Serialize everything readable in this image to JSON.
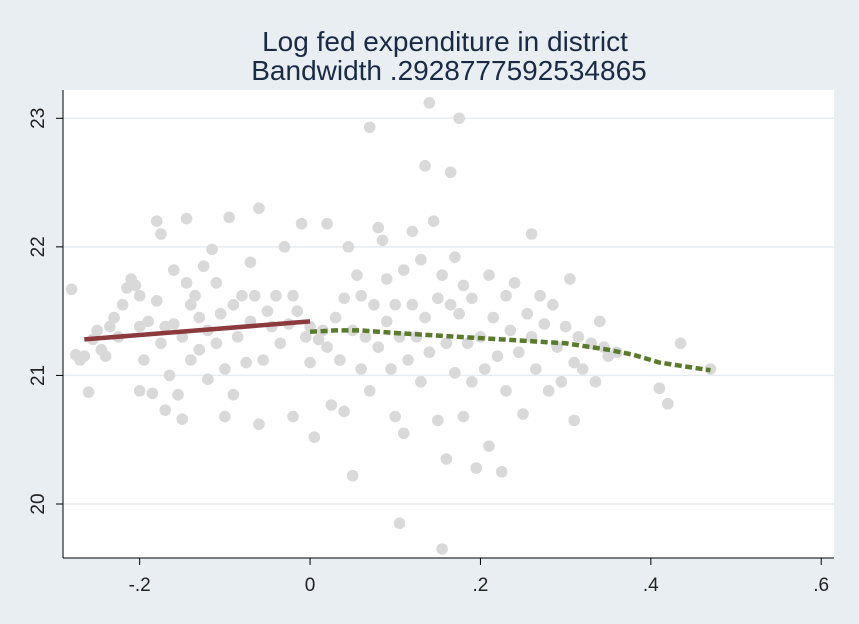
{
  "chart_data": {
    "type": "scatter",
    "title": "Log fed expenditure in district",
    "subtitle": "Bandwidth .2928777592534865",
    "xlabel": "",
    "ylabel": "",
    "xlim": [
      -0.29,
      0.615
    ],
    "ylim": [
      19.58,
      23.22
    ],
    "x_ticks": [
      -0.2,
      0,
      0.2,
      0.4,
      0.6
    ],
    "x_tick_labels": [
      "-.2",
      "0",
      ".2",
      ".4",
      ".6"
    ],
    "y_ticks": [
      20,
      21,
      22,
      23
    ],
    "y_tick_labels": [
      "20",
      "21",
      "22",
      "23"
    ],
    "grid": "horizontal",
    "legend": "none",
    "colors": {
      "background": "#e8eef2",
      "plot_area": "#ffffff",
      "grid": "#e6ecf0",
      "points": "#d9d9d9",
      "left_fit": "#8b3a3e",
      "right_fit": "#5a7a2e",
      "text": "#1a2a45"
    },
    "series": [
      {
        "type": "scatter",
        "points": [
          [
            -0.28,
            21.67
          ],
          [
            -0.275,
            21.16
          ],
          [
            -0.27,
            21.12
          ],
          [
            -0.265,
            21.15
          ],
          [
            -0.26,
            20.87
          ],
          [
            -0.255,
            21.28
          ],
          [
            -0.25,
            21.35
          ],
          [
            -0.245,
            21.2
          ],
          [
            -0.24,
            21.15
          ],
          [
            -0.235,
            21.38
          ],
          [
            -0.23,
            21.45
          ],
          [
            -0.225,
            21.3
          ],
          [
            -0.22,
            21.55
          ],
          [
            -0.215,
            21.68
          ],
          [
            -0.21,
            21.75
          ],
          [
            -0.205,
            21.7
          ],
          [
            -0.2,
            21.62
          ],
          [
            -0.2,
            21.38
          ],
          [
            -0.2,
            20.88
          ],
          [
            -0.195,
            21.12
          ],
          [
            -0.19,
            21.42
          ],
          [
            -0.185,
            20.86
          ],
          [
            -0.18,
            21.58
          ],
          [
            -0.18,
            22.2
          ],
          [
            -0.175,
            22.1
          ],
          [
            -0.175,
            21.25
          ],
          [
            -0.17,
            21.38
          ],
          [
            -0.17,
            20.73
          ],
          [
            -0.165,
            21.0
          ],
          [
            -0.16,
            21.4
          ],
          [
            -0.16,
            21.82
          ],
          [
            -0.155,
            20.85
          ],
          [
            -0.15,
            21.3
          ],
          [
            -0.15,
            20.66
          ],
          [
            -0.145,
            22.22
          ],
          [
            -0.145,
            21.72
          ],
          [
            -0.14,
            21.55
          ],
          [
            -0.14,
            21.12
          ],
          [
            -0.135,
            21.62
          ],
          [
            -0.13,
            21.45
          ],
          [
            -0.13,
            21.2
          ],
          [
            -0.125,
            21.85
          ],
          [
            -0.12,
            21.35
          ],
          [
            -0.12,
            20.97
          ],
          [
            -0.115,
            21.98
          ],
          [
            -0.11,
            21.72
          ],
          [
            -0.11,
            21.25
          ],
          [
            -0.105,
            21.48
          ],
          [
            -0.1,
            20.68
          ],
          [
            -0.1,
            21.05
          ],
          [
            -0.095,
            22.23
          ],
          [
            -0.09,
            21.55
          ],
          [
            -0.09,
            20.85
          ],
          [
            -0.085,
            21.3
          ],
          [
            -0.08,
            21.62
          ],
          [
            -0.075,
            21.1
          ],
          [
            -0.07,
            21.88
          ],
          [
            -0.07,
            21.42
          ],
          [
            -0.065,
            21.62
          ],
          [
            -0.06,
            22.3
          ],
          [
            -0.06,
            20.62
          ],
          [
            -0.055,
            21.12
          ],
          [
            -0.05,
            21.5
          ],
          [
            -0.045,
            21.38
          ],
          [
            -0.04,
            21.62
          ],
          [
            -0.035,
            21.25
          ],
          [
            -0.03,
            22.0
          ],
          [
            -0.025,
            21.4
          ],
          [
            -0.02,
            21.62
          ],
          [
            -0.02,
            20.68
          ],
          [
            -0.015,
            21.5
          ],
          [
            -0.01,
            22.18
          ],
          [
            -0.005,
            21.3
          ],
          [
            0.0,
            21.38
          ],
          [
            0.0,
            21.1
          ],
          [
            0.005,
            20.52
          ],
          [
            0.01,
            21.28
          ],
          [
            0.015,
            21.35
          ],
          [
            0.02,
            21.22
          ],
          [
            0.025,
            20.77
          ],
          [
            0.02,
            22.18
          ],
          [
            0.03,
            21.45
          ],
          [
            0.035,
            21.12
          ],
          [
            0.04,
            21.6
          ],
          [
            0.04,
            20.72
          ],
          [
            0.045,
            22.0
          ],
          [
            0.05,
            21.35
          ],
          [
            0.05,
            20.22
          ],
          [
            0.055,
            21.78
          ],
          [
            0.06,
            21.62
          ],
          [
            0.06,
            21.05
          ],
          [
            0.065,
            21.3
          ],
          [
            0.07,
            22.93
          ],
          [
            0.07,
            20.88
          ],
          [
            0.075,
            21.55
          ],
          [
            0.08,
            21.22
          ],
          [
            0.08,
            22.15
          ],
          [
            0.085,
            22.05
          ],
          [
            0.09,
            21.42
          ],
          [
            0.09,
            21.75
          ],
          [
            0.095,
            21.05
          ],
          [
            0.1,
            21.55
          ],
          [
            0.1,
            20.68
          ],
          [
            0.105,
            21.3
          ],
          [
            0.105,
            19.85
          ],
          [
            0.11,
            21.82
          ],
          [
            0.11,
            20.55
          ],
          [
            0.115,
            21.12
          ],
          [
            0.12,
            22.12
          ],
          [
            0.12,
            21.55
          ],
          [
            0.125,
            21.3
          ],
          [
            0.13,
            21.9
          ],
          [
            0.13,
            20.95
          ],
          [
            0.135,
            22.63
          ],
          [
            0.135,
            21.45
          ],
          [
            0.14,
            23.12
          ],
          [
            0.14,
            21.18
          ],
          [
            0.145,
            22.2
          ],
          [
            0.15,
            21.6
          ],
          [
            0.15,
            20.65
          ],
          [
            0.155,
            21.78
          ],
          [
            0.155,
            19.65
          ],
          [
            0.16,
            21.25
          ],
          [
            0.16,
            20.35
          ],
          [
            0.165,
            22.58
          ],
          [
            0.165,
            21.55
          ],
          [
            0.17,
            21.92
          ],
          [
            0.17,
            21.02
          ],
          [
            0.175,
            23.0
          ],
          [
            0.175,
            21.48
          ],
          [
            0.18,
            21.7
          ],
          [
            0.18,
            20.68
          ],
          [
            0.185,
            21.25
          ],
          [
            0.19,
            21.6
          ],
          [
            0.19,
            20.95
          ],
          [
            0.195,
            20.28
          ],
          [
            0.2,
            21.3
          ],
          [
            0.205,
            21.05
          ],
          [
            0.21,
            21.78
          ],
          [
            0.21,
            20.45
          ],
          [
            0.215,
            21.45
          ],
          [
            0.22,
            21.15
          ],
          [
            0.225,
            20.25
          ],
          [
            0.23,
            21.62
          ],
          [
            0.23,
            20.88
          ],
          [
            0.235,
            21.35
          ],
          [
            0.24,
            21.72
          ],
          [
            0.245,
            21.18
          ],
          [
            0.25,
            20.7
          ],
          [
            0.255,
            21.48
          ],
          [
            0.26,
            21.3
          ],
          [
            0.26,
            22.1
          ],
          [
            0.265,
            21.05
          ],
          [
            0.27,
            21.62
          ],
          [
            0.275,
            21.4
          ],
          [
            0.28,
            20.88
          ],
          [
            0.285,
            21.55
          ],
          [
            0.29,
            21.22
          ],
          [
            0.295,
            20.95
          ],
          [
            0.3,
            21.38
          ],
          [
            0.305,
            21.75
          ],
          [
            0.31,
            21.1
          ],
          [
            0.31,
            20.65
          ],
          [
            0.315,
            21.3
          ],
          [
            0.32,
            21.05
          ],
          [
            0.33,
            21.25
          ],
          [
            0.335,
            20.95
          ],
          [
            0.34,
            21.42
          ],
          [
            0.345,
            21.22
          ],
          [
            0.35,
            21.15
          ],
          [
            0.36,
            21.18
          ],
          [
            0.41,
            20.9
          ],
          [
            0.42,
            20.78
          ],
          [
            0.435,
            21.25
          ],
          [
            0.47,
            21.05
          ]
        ]
      },
      {
        "type": "line",
        "points": [
          [
            -0.265,
            21.28
          ],
          [
            0.0,
            21.42
          ]
        ]
      },
      {
        "type": "line",
        "style": "dashed",
        "points": [
          [
            0.0,
            21.34
          ],
          [
            0.03,
            21.35
          ],
          [
            0.06,
            21.35
          ],
          [
            0.1,
            21.33
          ],
          [
            0.15,
            21.31
          ],
          [
            0.2,
            21.29
          ],
          [
            0.25,
            21.27
          ],
          [
            0.3,
            21.25
          ],
          [
            0.35,
            21.2
          ],
          [
            0.38,
            21.16
          ],
          [
            0.41,
            21.1
          ],
          [
            0.44,
            21.07
          ],
          [
            0.47,
            21.04
          ]
        ]
      }
    ]
  }
}
